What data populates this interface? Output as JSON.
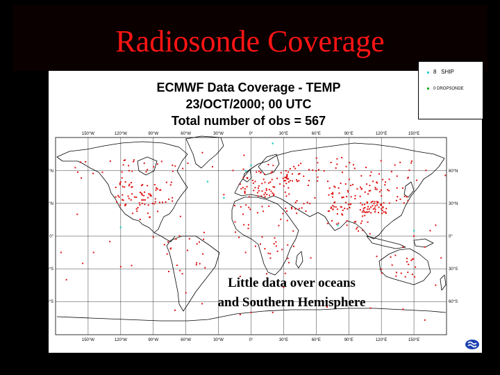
{
  "slide": {
    "title": "Radiosonde Coverage"
  },
  "figure": {
    "title_lines": [
      "ECMWF Data Coverage  - TEMP",
      "23/OCT/2000; 00 UTC",
      "Total number of obs = 567"
    ],
    "legend": [
      {
        "count": "8",
        "label": "SHIP",
        "color": "#33cccc"
      },
      {
        "count": "0",
        "label": "DROPSONDE",
        "color": "#22aa22"
      }
    ],
    "station_color": "#e01010",
    "ship_color": "#33cccc",
    "lon_labels": [
      "150°W",
      "120°W",
      "90°W",
      "60°W",
      "30°W",
      "0°",
      "30°E",
      "60°E",
      "90°E",
      "120°E",
      "150°E"
    ],
    "lat_labels": [
      "60°N",
      "30°N",
      "0°",
      "30°S",
      "60°S"
    ],
    "annotation_lines": [
      "Little data over oceans",
      "and Southern Hemisphere"
    ],
    "logo_icon": "ecmwf-logo-icon"
  }
}
